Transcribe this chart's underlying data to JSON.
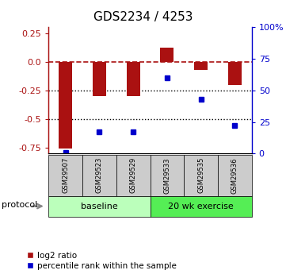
{
  "title": "GDS2234 / 4253",
  "samples": [
    "GSM29507",
    "GSM29523",
    "GSM29529",
    "GSM29533",
    "GSM29535",
    "GSM29536"
  ],
  "log2_ratio": [
    -0.76,
    -0.3,
    -0.3,
    0.12,
    -0.07,
    -0.2
  ],
  "percentile_rank": [
    1,
    17,
    17,
    60,
    43,
    22
  ],
  "bar_color": "#aa1111",
  "dot_color": "#0000cc",
  "ylim_left": [
    -0.8,
    0.3
  ],
  "ylim_right": [
    0,
    100
  ],
  "yticks_left": [
    0.25,
    0.0,
    -0.25,
    -0.5,
    -0.75
  ],
  "yticks_right": [
    100,
    75,
    50,
    25,
    0
  ],
  "baseline_count": 3,
  "exercise_count": 3,
  "baseline_label": "baseline",
  "exercise_label": "20 wk exercise",
  "protocol_label": "protocol",
  "legend_bar_label": "log2 ratio",
  "legend_dot_label": "percentile rank within the sample",
  "baseline_color": "#bbffbb",
  "exercise_color": "#55ee55",
  "sample_box_color": "#cccccc",
  "bar_width": 0.4,
  "dot_size": 5
}
